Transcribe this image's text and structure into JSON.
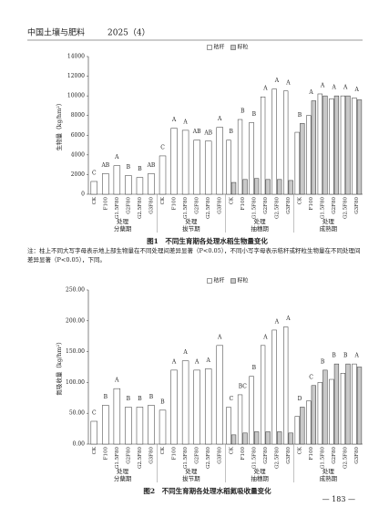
{
  "header": {
    "journal": "中国土壤与肥料",
    "issue": "2025（4）"
  },
  "chart_data": [
    {
      "type": "bar",
      "caption": "图1　不同生育期各处理水稻生物量变化",
      "ylabel": "生物量（kg/hm²）",
      "xlabel": "处理",
      "ylim": [
        0,
        14000
      ],
      "yticks": [
        0,
        2000,
        4000,
        6000,
        8000,
        10000,
        12000,
        14000
      ],
      "legend": "top",
      "groups": [
        "分蘖期",
        "拔节期",
        "抽穗期",
        "成熟期"
      ],
      "categories": [
        "CK",
        "F100",
        "G1.5F80",
        "G2F80",
        "G2.5F80",
        "G3F80",
        "CK",
        "F100",
        "G1.5F80",
        "G2F80",
        "G2.5F80",
        "G3F80",
        "CK",
        "F100",
        "G1.5F80",
        "G2F80",
        "G2.5F80",
        "G3F80",
        "CK",
        "F100",
        "G1.5F80",
        "G2F80",
        "G2.5F80",
        "G3F80"
      ],
      "series": [
        {
          "name": "秸秆",
          "color": "#ffffff",
          "values": [
            1300,
            2100,
            2900,
            1900,
            1700,
            2100,
            3900,
            6700,
            6500,
            5500,
            5400,
            6800,
            5500,
            7600,
            7300,
            9900,
            10700,
            10500,
            6300,
            8000,
            10200,
            9700,
            10000,
            9800
          ]
        },
        {
          "name": "籽粒",
          "color": "#c8c8c8",
          "values": [
            null,
            null,
            null,
            null,
            null,
            null,
            null,
            null,
            null,
            null,
            null,
            null,
            1200,
            1500,
            1600,
            1500,
            1500,
            1400,
            7200,
            9500,
            10000,
            10000,
            10000,
            9600
          ]
        }
      ],
      "annotations": [
        "C",
        "AB",
        "A",
        "B",
        "B",
        "AB",
        "C",
        "A",
        "A",
        "AB",
        "AB",
        "A",
        "B",
        "B",
        "B",
        "A",
        "A",
        "A",
        "B",
        "A",
        "A",
        "A",
        "A",
        "A"
      ]
    },
    {
      "type": "bar",
      "caption": "图2　不同生育期各处理水稻氮吸收量变化",
      "ylabel": "氮吸收量（kg/hm²）",
      "xlabel": "处理",
      "ylim": [
        0,
        250
      ],
      "yticks": [
        {
          "value": 0,
          "label": "0.00"
        },
        {
          "value": 50,
          "label": "50.00"
        },
        {
          "value": 100,
          "label": "100.00"
        },
        {
          "value": 150,
          "label": "150.00"
        },
        {
          "value": 200,
          "label": "200.00"
        },
        {
          "value": 250,
          "label": "250.00"
        }
      ],
      "legend": "top",
      "groups": [
        "分蘖期",
        "拔节期",
        "抽穗期",
        "成熟期"
      ],
      "categories": [
        "CK",
        "F100",
        "G1.5F80",
        "G2F80",
        "G2.5F80",
        "G3F80",
        "CK",
        "F100",
        "G1.5F80",
        "G2F80",
        "G2.5F80",
        "G3F80",
        "CK",
        "F100",
        "G1.5F80",
        "G2F80",
        "G2.5F80",
        "G3F80",
        "CK",
        "F100",
        "G1.5F80",
        "G2F80",
        "G2.5F80",
        "G3F80"
      ],
      "series": [
        {
          "name": "秸秆",
          "color": "#ffffff",
          "values": [
            37,
            63,
            90,
            60,
            60,
            63,
            55,
            120,
            135,
            120,
            122,
            160,
            60,
            80,
            110,
            160,
            185,
            190,
            45,
            70,
            100,
            105,
            115,
            130
          ]
        },
        {
          "name": "籽粒",
          "color": "#c8c8c8",
          "values": [
            null,
            null,
            null,
            null,
            null,
            null,
            null,
            null,
            null,
            null,
            null,
            null,
            15,
            18,
            20,
            20,
            20,
            18,
            60,
            95,
            120,
            130,
            130,
            125
          ]
        }
      ],
      "annotations": [
        "C",
        "B",
        "A",
        "B",
        "B",
        "B",
        "B",
        "A",
        "A",
        "A",
        "A",
        "A",
        "C",
        "BC",
        "B",
        "A",
        "A",
        "A",
        "D",
        "C",
        "B",
        "B",
        "B",
        "A"
      ]
    }
  ],
  "note": "注：柱上不同大写字母表示地上部生物量在不同处理间差异显著（P<0.05），不同小写字母表示秸秆或籽粒生物量在不同处理间差异显著（P<0.05），下同。",
  "page_number": "— 183 —"
}
